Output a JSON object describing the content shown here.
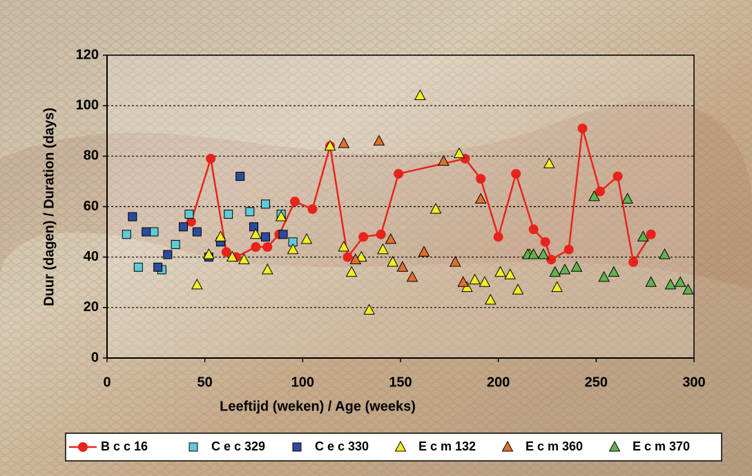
{
  "chart_data": {
    "type": "scatter",
    "x_label": "Leeftijd (weken)  /  Age (weeks)",
    "y_label": "Duur  (dagen)  /  Duration (days)",
    "xlim": [
      0,
      300
    ],
    "xticks": [
      0,
      50,
      100,
      150,
      200,
      250,
      300
    ],
    "ylim": [
      0,
      120
    ],
    "yticks": [
      0,
      20,
      40,
      60,
      80,
      100,
      120
    ],
    "grid": true,
    "legend": "bottom",
    "series": [
      {
        "name": "B c c 16",
        "color": "#e8231d",
        "marker": "circle",
        "line": true,
        "x": [
          43,
          53,
          61,
          66,
          76,
          82,
          88,
          96,
          105,
          114,
          123,
          131,
          140,
          149,
          183,
          191,
          200,
          209,
          218,
          224,
          227,
          236,
          243,
          252,
          261,
          269,
          278
        ],
        "values": [
          54,
          79,
          42,
          40,
          44,
          44,
          49,
          62,
          59,
          84,
          40,
          48,
          49,
          73,
          79,
          71,
          48,
          73,
          51,
          46,
          39,
          43,
          91,
          66,
          72,
          38,
          49
        ]
      },
      {
        "name": "C e c 329",
        "color": "#5fcad8",
        "marker": "square",
        "line": false,
        "x": [
          10,
          16,
          24,
          28,
          35,
          42,
          62,
          73,
          81,
          89,
          95
        ],
        "values": [
          49,
          36,
          50,
          35,
          45,
          57,
          57,
          58,
          61,
          57,
          46
        ]
      },
      {
        "name": "C e c 330",
        "color": "#2c4a9e",
        "marker": "square",
        "line": false,
        "x": [
          13,
          20,
          26,
          31,
          39,
          46,
          52,
          58,
          68,
          75,
          81,
          90
        ],
        "values": [
          56,
          50,
          36,
          41,
          52,
          50,
          40,
          46,
          72,
          52,
          48,
          49
        ]
      },
      {
        "name": "E c m 132",
        "color": "#f2ee22",
        "marker": "triangle",
        "line": false,
        "x": [
          46,
          52,
          58,
          64,
          70,
          76,
          82,
          89,
          95,
          102,
          114,
          121,
          125,
          130,
          134,
          141,
          146,
          160,
          168,
          180,
          184,
          188,
          193,
          196,
          201,
          206,
          210,
          216,
          226,
          230
        ],
        "values": [
          29,
          41,
          48,
          40,
          39,
          49,
          35,
          56,
          43,
          47,
          84,
          44,
          34,
          40,
          19,
          43,
          38,
          104,
          59,
          81,
          28,
          31,
          30,
          23,
          34,
          33,
          27,
          41,
          77,
          28
        ]
      },
      {
        "name": "E c m 360",
        "color": "#e0702e",
        "marker": "triangle",
        "line": false,
        "x": [
          121,
          127,
          139,
          145,
          151,
          156,
          162,
          172,
          178,
          182,
          191
        ],
        "values": [
          85,
          39,
          86,
          47,
          36,
          32,
          42,
          78,
          38,
          30,
          63
        ]
      },
      {
        "name": "E c m 370",
        "color": "#5fb34e",
        "marker": "triangle",
        "line": false,
        "x": [
          215,
          218,
          223,
          229,
          234,
          240,
          249,
          254,
          259,
          266,
          274,
          278,
          285,
          288,
          293,
          297
        ],
        "values": [
          41,
          41,
          41,
          34,
          35,
          36,
          64,
          32,
          34,
          63,
          48,
          30,
          41,
          29,
          30,
          27
        ]
      }
    ]
  }
}
